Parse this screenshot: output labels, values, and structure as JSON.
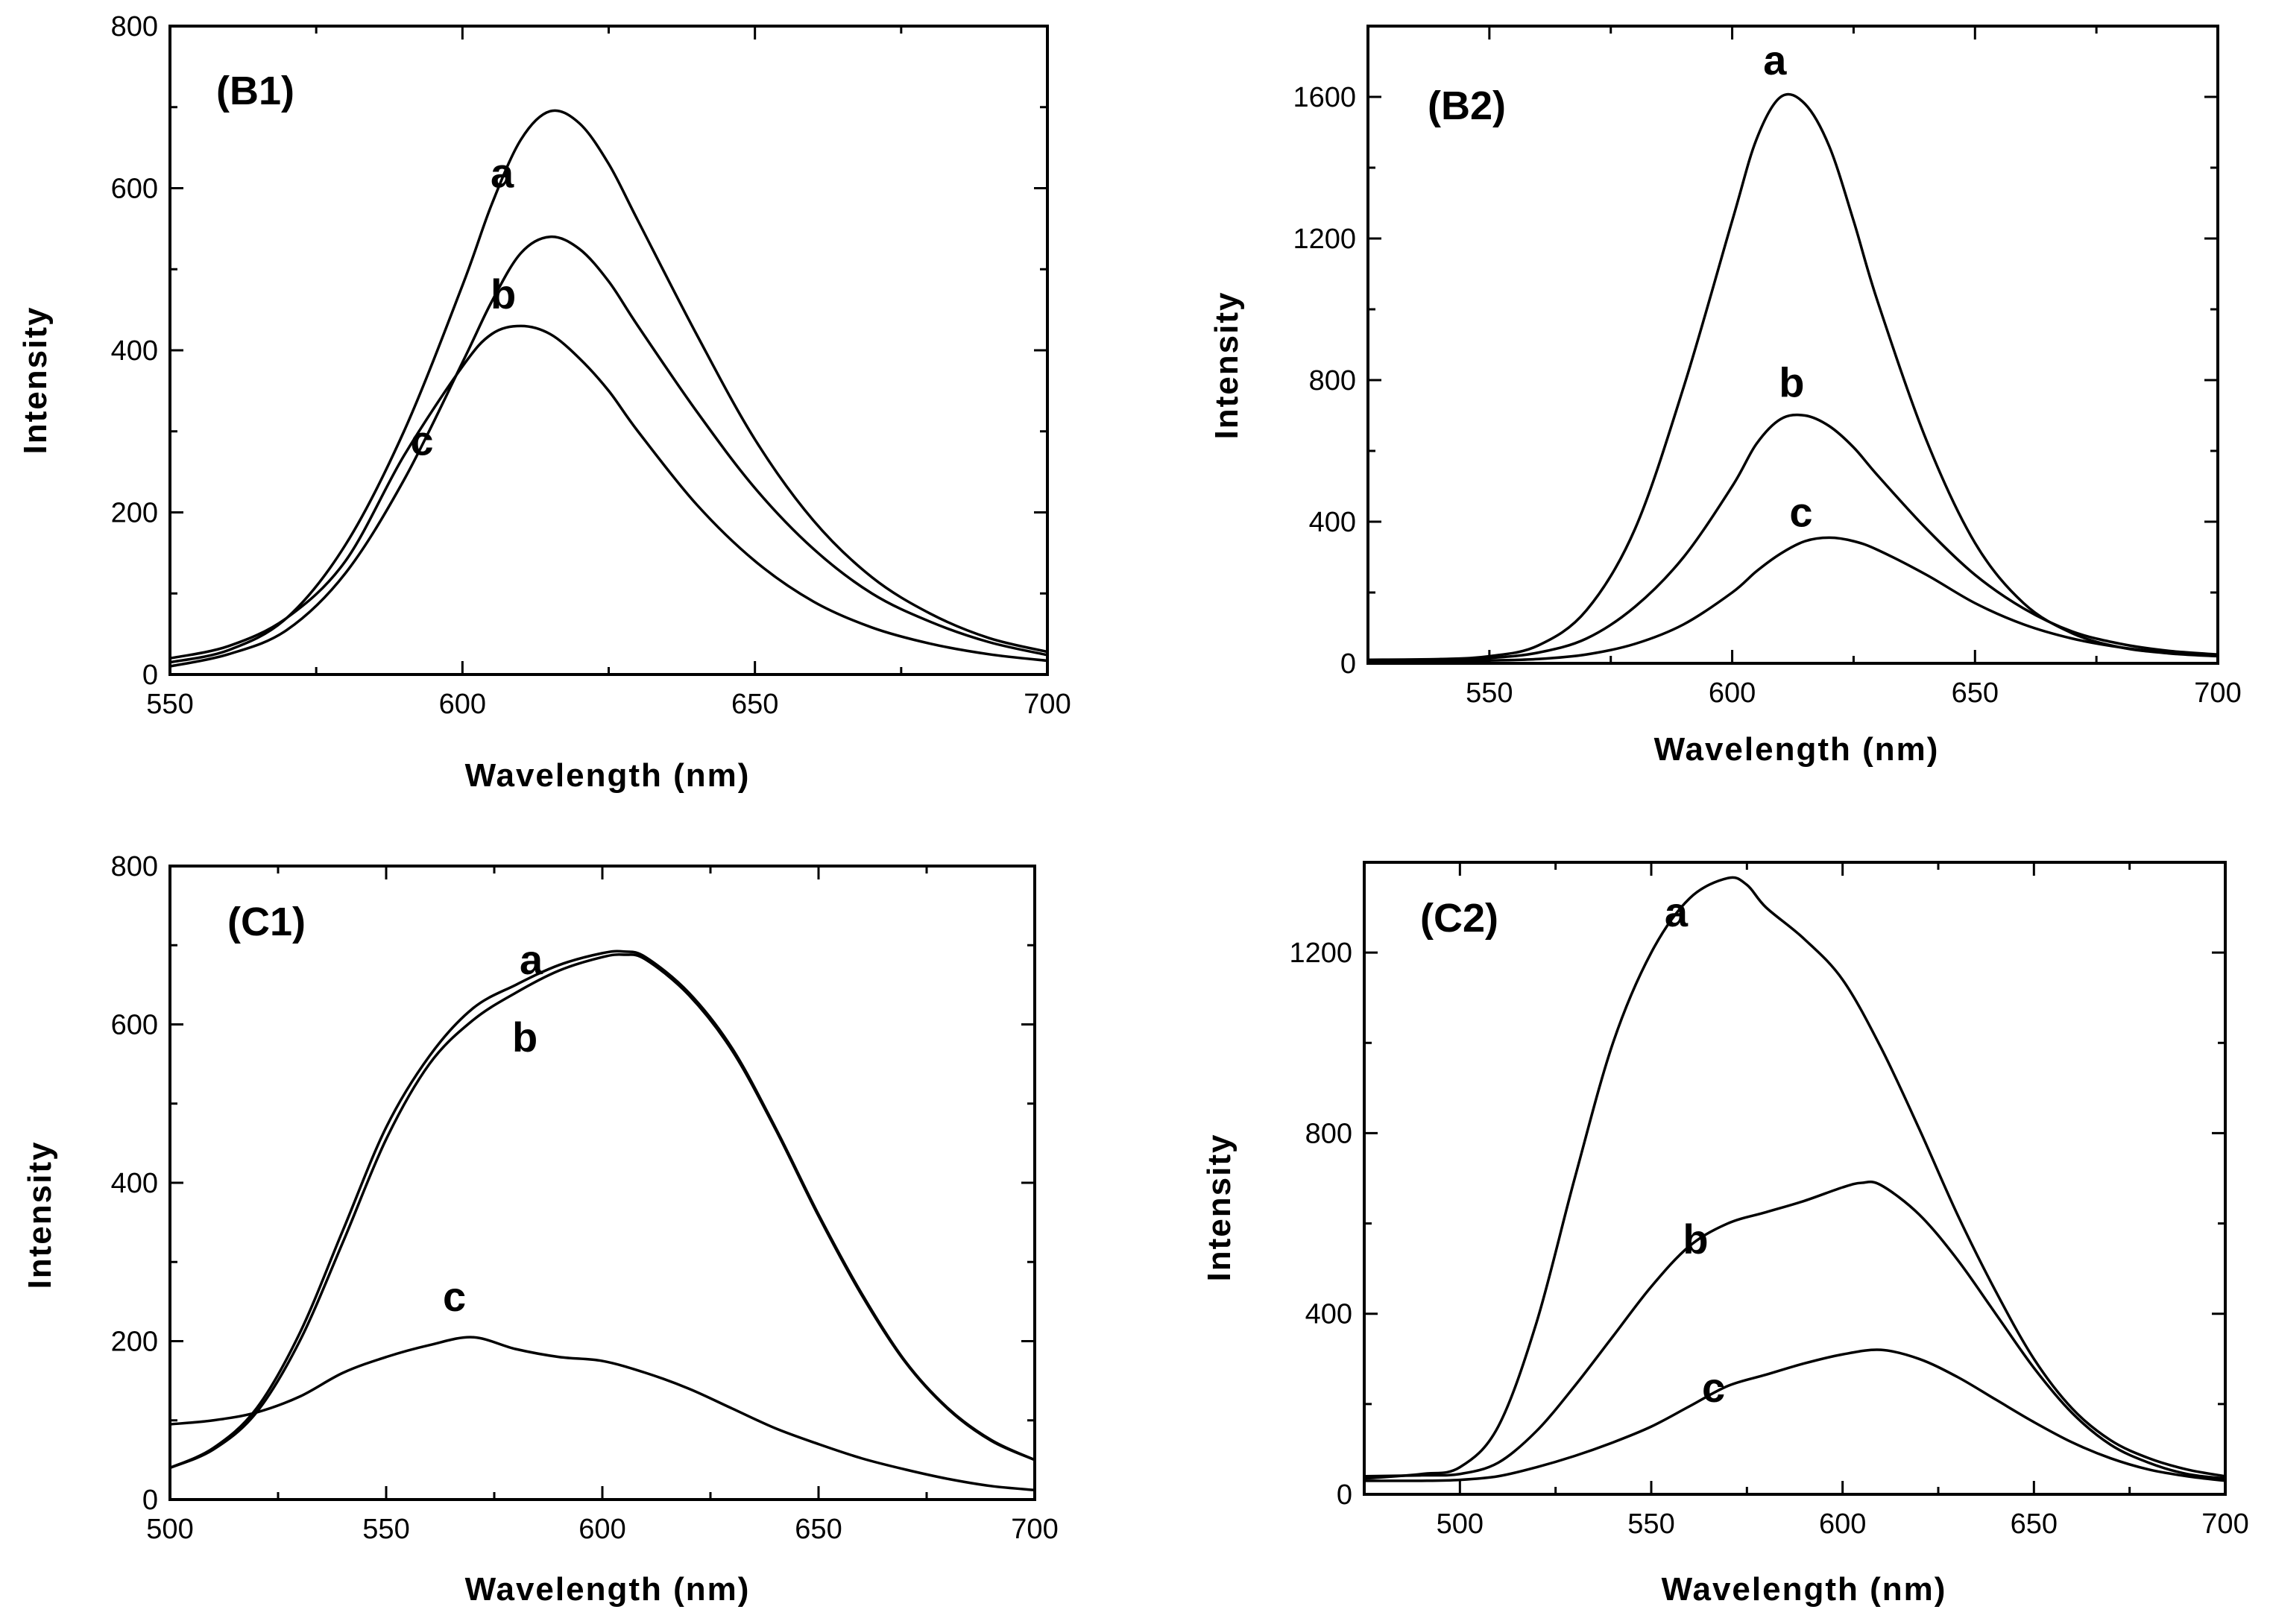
{
  "figure": {
    "background": "#ffffff",
    "line_color": "#000000"
  },
  "chart_data": [
    {
      "id": "B1",
      "type": "line",
      "title": "(B1)",
      "xlabel": "Wavelength (nm)",
      "ylabel": "Intensity",
      "xlim": [
        550,
        700
      ],
      "ylim": [
        0,
        800
      ],
      "xticks": [
        550,
        600,
        650,
        700
      ],
      "yticks": [
        0,
        200,
        400,
        600,
        800
      ],
      "series": [
        {
          "name": "a",
          "x": [
            550,
            560,
            570,
            580,
            590,
            600,
            605,
            610,
            615,
            620,
            625,
            630,
            640,
            650,
            660,
            670,
            680,
            690,
            700
          ],
          "y": [
            15,
            30,
            70,
            160,
            300,
            480,
            580,
            660,
            695,
            680,
            630,
            560,
            420,
            290,
            190,
            120,
            75,
            45,
            28
          ]
        },
        {
          "name": "b",
          "x": [
            550,
            560,
            570,
            580,
            590,
            600,
            605,
            610,
            615,
            620,
            625,
            630,
            640,
            650,
            660,
            670,
            680,
            690,
            700
          ],
          "y": [
            10,
            25,
            55,
            125,
            240,
            385,
            460,
            520,
            540,
            525,
            485,
            430,
            325,
            230,
            155,
            100,
            65,
            40,
            24
          ]
        },
        {
          "name": "c",
          "x": [
            550,
            560,
            570,
            580,
            590,
            600,
            605,
            610,
            615,
            620,
            625,
            630,
            640,
            650,
            660,
            670,
            680,
            690,
            700
          ],
          "y": [
            20,
            35,
            70,
            140,
            270,
            380,
            420,
            430,
            420,
            390,
            350,
            300,
            210,
            140,
            90,
            58,
            38,
            25,
            17
          ]
        }
      ]
    },
    {
      "id": "B2",
      "type": "line",
      "title": "(B2)",
      "xlabel": "Wavelength (nm)",
      "ylabel": "Intensity",
      "xlim": [
        525,
        700
      ],
      "ylim": [
        0,
        1800
      ],
      "xticks": [
        550,
        600,
        650,
        700
      ],
      "yticks": [
        0,
        400,
        800,
        1200,
        1600
      ],
      "series": [
        {
          "name": "a",
          "x": [
            525,
            540,
            550,
            560,
            570,
            580,
            590,
            600,
            605,
            610,
            615,
            620,
            625,
            630,
            640,
            650,
            660,
            670,
            680,
            690,
            700
          ],
          "y": [
            10,
            12,
            20,
            50,
            150,
            380,
            780,
            1250,
            1480,
            1600,
            1580,
            1460,
            1250,
            1020,
            630,
            340,
            170,
            85,
            45,
            28,
            20
          ]
        },
        {
          "name": "b",
          "x": [
            525,
            540,
            550,
            560,
            570,
            580,
            590,
            600,
            605,
            610,
            615,
            620,
            625,
            630,
            640,
            650,
            660,
            670,
            680,
            690,
            700
          ],
          "y": [
            8,
            10,
            15,
            30,
            70,
            160,
            300,
            500,
            620,
            690,
            700,
            670,
            610,
            530,
            380,
            250,
            155,
            90,
            55,
            35,
            25
          ]
        },
        {
          "name": "c",
          "x": [
            525,
            540,
            550,
            560,
            570,
            580,
            590,
            600,
            605,
            610,
            615,
            620,
            625,
            630,
            640,
            650,
            660,
            670,
            680,
            690,
            700
          ],
          "y": [
            5,
            6,
            8,
            12,
            25,
            55,
            110,
            200,
            260,
            310,
            345,
            355,
            345,
            320,
            250,
            170,
            110,
            70,
            45,
            30,
            22
          ]
        }
      ]
    },
    {
      "id": "C1",
      "type": "line",
      "title": "(C1)",
      "xlabel": "Wavelength (nm)",
      "ylabel": "Intensity",
      "xlim": [
        500,
        700
      ],
      "ylim": [
        0,
        800
      ],
      "xticks": [
        500,
        550,
        600,
        650,
        700
      ],
      "yticks": [
        0,
        200,
        400,
        600,
        800
      ],
      "series": [
        {
          "name": "a",
          "x": [
            500,
            510,
            520,
            530,
            540,
            550,
            560,
            570,
            580,
            590,
            600,
            605,
            610,
            620,
            630,
            640,
            650,
            660,
            670,
            680,
            690,
            700
          ],
          "y": [
            40,
            65,
            115,
            210,
            340,
            470,
            560,
            620,
            650,
            675,
            690,
            692,
            685,
            640,
            570,
            470,
            360,
            260,
            175,
            115,
            75,
            50
          ]
        },
        {
          "name": "b",
          "x": [
            500,
            510,
            520,
            530,
            540,
            550,
            560,
            570,
            580,
            590,
            600,
            605,
            610,
            620,
            630,
            640,
            650,
            660,
            670,
            680,
            690,
            700
          ],
          "y": [
            40,
            63,
            110,
            200,
            325,
            455,
            550,
            605,
            640,
            668,
            685,
            688,
            682,
            637,
            567,
            468,
            358,
            258,
            174,
            114,
            74,
            50
          ]
        },
        {
          "name": "c",
          "x": [
            500,
            510,
            520,
            530,
            540,
            550,
            560,
            570,
            580,
            590,
            600,
            610,
            620,
            630,
            640,
            650,
            660,
            670,
            680,
            690,
            700
          ],
          "y": [
            95,
            100,
            110,
            130,
            160,
            180,
            195,
            205,
            190,
            180,
            175,
            160,
            140,
            115,
            90,
            70,
            52,
            38,
            26,
            17,
            12
          ]
        }
      ]
    },
    {
      "id": "C2",
      "type": "line",
      "title": "(C2)",
      "xlabel": "Wavelength (nm)",
      "ylabel": "Intensity",
      "xlim": [
        475,
        700
      ],
      "ylim": [
        0,
        1400
      ],
      "xticks": [
        500,
        550,
        600,
        650,
        700
      ],
      "yticks": [
        0,
        400,
        800,
        1200
      ],
      "series": [
        {
          "name": "a",
          "x": [
            475,
            490,
            500,
            510,
            520,
            530,
            540,
            550,
            560,
            570,
            575,
            580,
            590,
            600,
            610,
            620,
            630,
            640,
            650,
            660,
            670,
            680,
            690,
            700
          ],
          "y": [
            35,
            45,
            60,
            150,
            380,
            700,
            1000,
            1200,
            1320,
            1365,
            1350,
            1300,
            1230,
            1140,
            990,
            810,
            620,
            450,
            300,
            190,
            120,
            80,
            55,
            40
          ]
        },
        {
          "name": "b",
          "x": [
            475,
            490,
            500,
            510,
            520,
            530,
            540,
            550,
            560,
            570,
            580,
            590,
            600,
            605,
            610,
            620,
            630,
            640,
            650,
            660,
            670,
            680,
            690,
            700
          ],
          "y": [
            40,
            42,
            45,
            70,
            140,
            240,
            350,
            460,
            550,
            600,
            625,
            650,
            680,
            690,
            685,
            620,
            520,
            400,
            280,
            180,
            110,
            70,
            45,
            35
          ]
        },
        {
          "name": "c",
          "x": [
            475,
            490,
            500,
            510,
            520,
            530,
            540,
            550,
            560,
            570,
            580,
            590,
            600,
            610,
            620,
            630,
            640,
            650,
            660,
            670,
            680,
            690,
            700
          ],
          "y": [
            30,
            30,
            32,
            40,
            60,
            85,
            115,
            150,
            195,
            240,
            265,
            290,
            310,
            320,
            300,
            260,
            210,
            160,
            115,
            80,
            55,
            40,
            30
          ]
        }
      ]
    }
  ]
}
